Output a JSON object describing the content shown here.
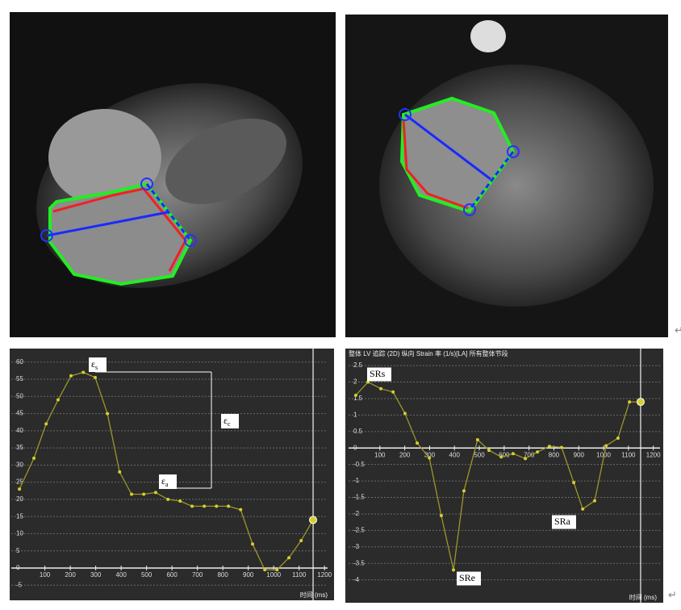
{
  "panels": {
    "return_marks": [
      "↵",
      "↵"
    ]
  },
  "chart_data": [
    {
      "type": "line",
      "x_label": "时间 (ms)",
      "color": "#9c962c",
      "marker_color": "#d6cf2c",
      "grid": true,
      "xlim": [
        -32,
        1212
      ],
      "ylim": [
        -8,
        63
      ],
      "xticks": [
        100,
        200,
        300,
        400,
        500,
        600,
        700,
        800,
        900,
        1000,
        1100,
        1200
      ],
      "yticks": [
        -5,
        0,
        5,
        10,
        15,
        20,
        25,
        30,
        35,
        40,
        45,
        50,
        55,
        60
      ],
      "x": [
        0,
        57,
        105,
        152,
        203,
        251,
        298,
        346,
        394,
        441,
        489,
        536,
        584,
        632,
        679,
        727,
        775,
        822,
        870,
        917,
        965,
        1013,
        1060,
        1108,
        1155
      ],
      "values": [
        23,
        32,
        42,
        49,
        56,
        57,
        55.5,
        45,
        28,
        21.5,
        21.5,
        22,
        20,
        19.5,
        18,
        18,
        18,
        18,
        17,
        7,
        -0.5,
        -0.5,
        3,
        8,
        14
      ],
      "annotations": [
        {
          "text": "ε",
          "sub": "s"
        },
        {
          "text": "ε",
          "sub": "c"
        },
        {
          "text": "ε",
          "sub": "a"
        }
      ]
    },
    {
      "type": "line",
      "title": "整体 LV 追踪 (2D) 纵向 Strain 率 (1/s)[LA] 所有整体节段",
      "x_label": "时间 (ms)",
      "color": "#9c962c",
      "marker_color": "#d6cf2c",
      "grid": true,
      "xlim": [
        -26,
        1227
      ],
      "ylim": [
        -4.4,
        2.65
      ],
      "xticks": [
        100,
        200,
        300,
        400,
        500,
        600,
        700,
        800,
        900,
        1000,
        1100,
        1200
      ],
      "yticks": [
        -4,
        -3.5,
        -3,
        -2.5,
        -2,
        -1.5,
        -1,
        -0.5,
        0,
        0.5,
        1,
        1.5,
        2,
        2.5
      ],
      "x": [
        3,
        52,
        104,
        153,
        201,
        250,
        299,
        347,
        396,
        438,
        493,
        539,
        588,
        636,
        685,
        734,
        782,
        831,
        880,
        916,
        964,
        1010,
        1058,
        1104,
        1149
      ],
      "values": [
        1.6,
        2.0,
        1.8,
        1.7,
        1.05,
        0.15,
        -0.3,
        -2.05,
        -3.7,
        -1.3,
        0.25,
        -0.07,
        -0.27,
        -0.17,
        -0.32,
        -0.12,
        0.05,
        0.02,
        -1.05,
        -1.85,
        -1.6,
        0.07,
        0.3,
        1.4,
        1.4
      ],
      "annotations": [
        {
          "text": "SRs"
        },
        {
          "text": "SRe"
        },
        {
          "text": "SRa"
        }
      ]
    }
  ]
}
